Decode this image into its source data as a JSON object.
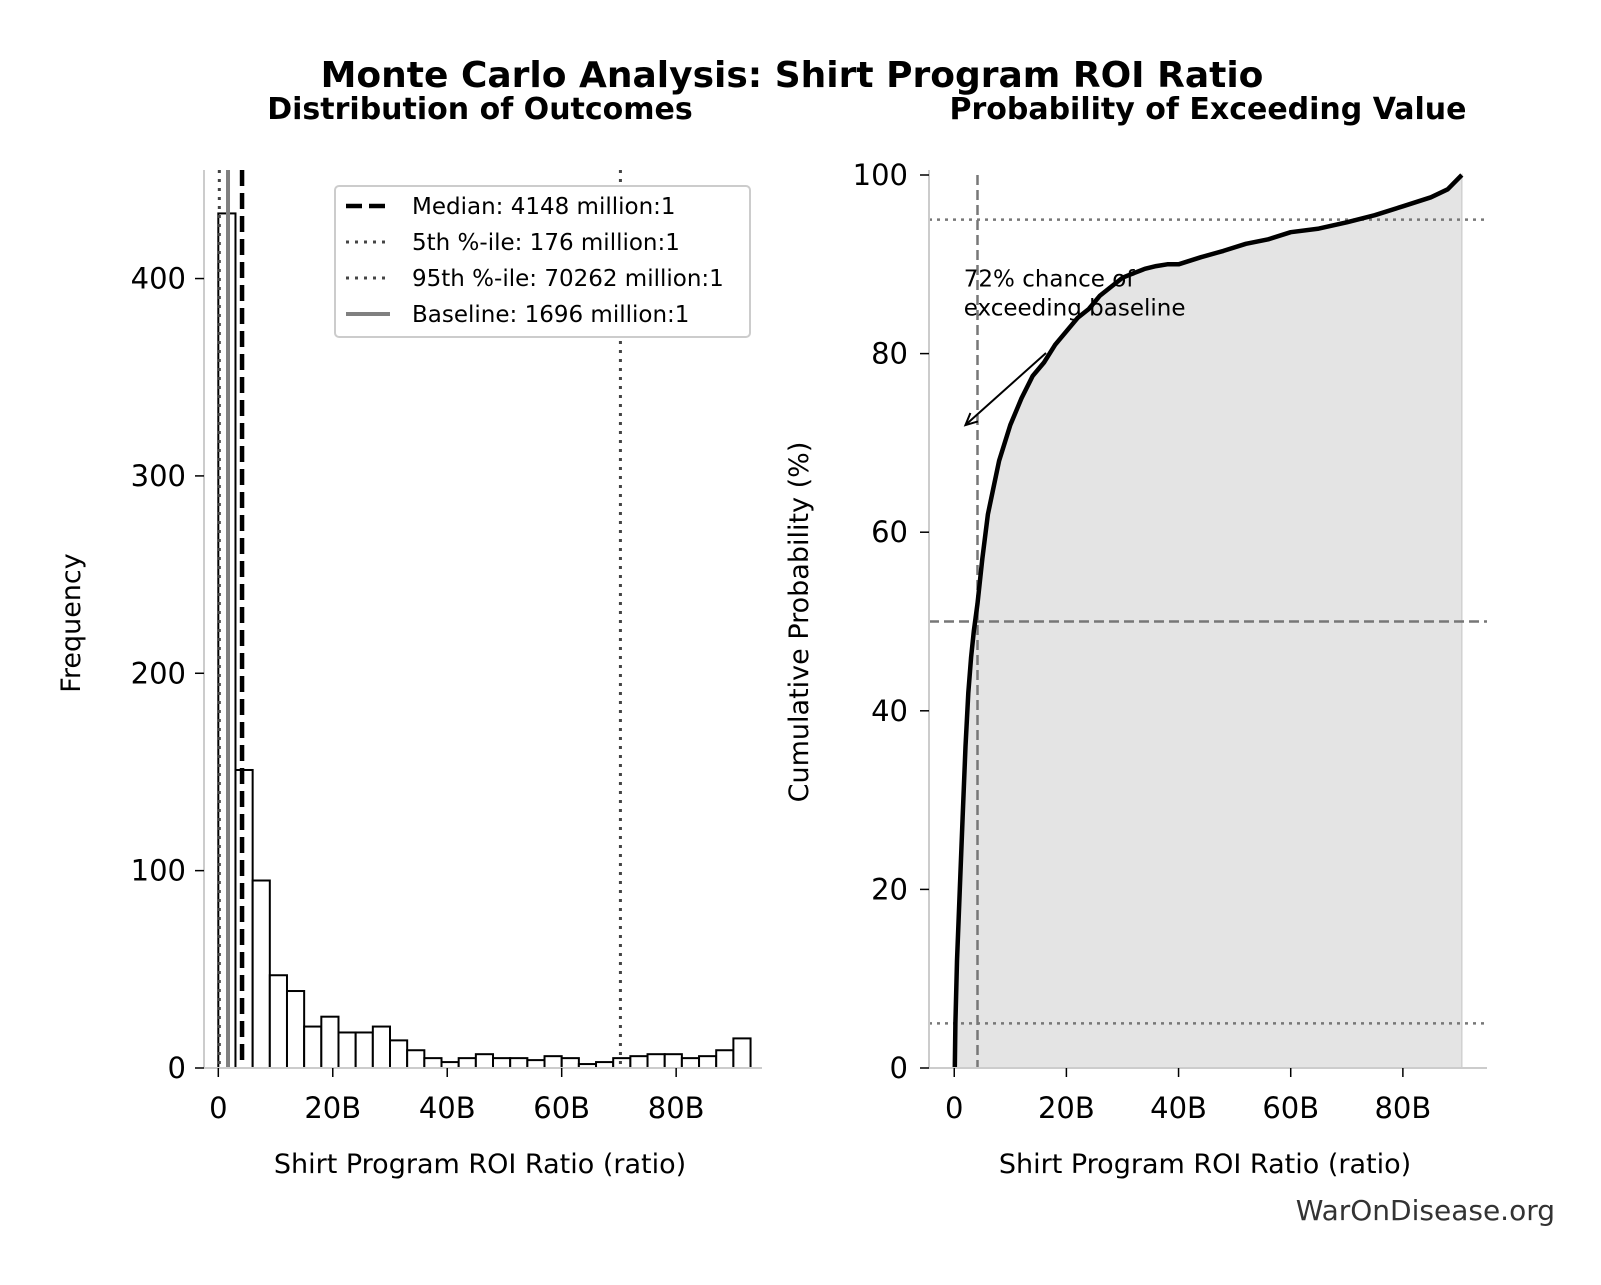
{
  "title": "Monte Carlo Analysis: Shirt Program ROI Ratio",
  "watermark": "WarOnDisease.org",
  "colors": {
    "bar_fill": "#ffffff",
    "bar_edge": "#000000",
    "median_line": "#000000",
    "percentile_line": "#444444",
    "baseline_line": "#808080",
    "cdf_line": "#000000",
    "cdf_fill": "#e4e4e4",
    "ref_line": "#777777",
    "axis": "#cccccc"
  },
  "chart_data": [
    {
      "type": "bar",
      "title": "Distribution of Outcomes",
      "xlabel": "Shirt Program ROI Ratio (ratio)",
      "ylabel": "Frequency",
      "xlim": [
        -2.5,
        95
      ],
      "ylim": [
        0,
        455
      ],
      "x_unit": "billion",
      "xticks": [
        {
          "value": 0,
          "label": "0"
        },
        {
          "value": 20,
          "label": "20B"
        },
        {
          "value": 40,
          "label": "40B"
        },
        {
          "value": 60,
          "label": "60B"
        },
        {
          "value": 80,
          "label": "80B"
        }
      ],
      "yticks": [
        {
          "value": 0,
          "label": "0"
        },
        {
          "value": 100,
          "label": "100"
        },
        {
          "value": 200,
          "label": "200"
        },
        {
          "value": 300,
          "label": "300"
        },
        {
          "value": 400,
          "label": "400"
        }
      ],
      "bin_start": 0,
      "bin_width": 3,
      "counts": [
        433,
        151,
        95,
        47,
        39,
        21,
        26,
        18,
        18,
        21,
        14,
        9,
        5,
        3,
        5,
        7,
        5,
        5,
        4,
        6,
        5,
        2,
        3,
        5,
        6,
        7,
        7,
        5,
        6,
        9,
        15
      ],
      "lines": [
        {
          "name": "Median: 4148 million:1",
          "x": 4.148,
          "style": "median"
        },
        {
          "name": "5th %-ile: 176 million:1",
          "x": 0.176,
          "style": "p5"
        },
        {
          "name": "95th %-ile: 70262 million:1",
          "x": 70.262,
          "style": "p95"
        },
        {
          "name": "Baseline: 1696 million:1",
          "x": 1.696,
          "style": "baseline"
        }
      ],
      "legend_position": "top-right",
      "grid": false
    },
    {
      "type": "area",
      "title": "Probability of Exceeding Value",
      "xlabel": "Shirt Program ROI Ratio (ratio)",
      "ylabel": "Cumulative Probability (%)",
      "xlim": [
        -4.5,
        95
      ],
      "ylim": [
        0,
        100
      ],
      "x_unit": "billion",
      "xticks": [
        {
          "value": 0,
          "label": "0"
        },
        {
          "value": 20,
          "label": "20B"
        },
        {
          "value": 40,
          "label": "40B"
        },
        {
          "value": 60,
          "label": "60B"
        },
        {
          "value": 80,
          "label": "80B"
        }
      ],
      "yticks": [
        {
          "value": 0,
          "label": "0"
        },
        {
          "value": 20,
          "label": "20"
        },
        {
          "value": 40,
          "label": "40"
        },
        {
          "value": 60,
          "label": "60"
        },
        {
          "value": 80,
          "label": "80"
        },
        {
          "value": 100,
          "label": "100"
        }
      ],
      "x": [
        0.1,
        0.2,
        0.5,
        1,
        1.5,
        2,
        2.5,
        3,
        3.5,
        4.148,
        5,
        6,
        7,
        8,
        9,
        10,
        12,
        14,
        16,
        18,
        20,
        22,
        24,
        26,
        28,
        30,
        32,
        34,
        36,
        38,
        40,
        44,
        48,
        52,
        56,
        60,
        65,
        70,
        75,
        80,
        85,
        88,
        90.5
      ],
      "y": [
        0,
        5,
        12,
        20,
        28,
        36,
        42,
        46,
        49,
        52,
        57,
        62,
        65,
        68,
        70,
        72,
        75,
        77.5,
        79,
        81,
        82.5,
        84,
        85,
        86.5,
        87.5,
        88.5,
        89,
        89.5,
        89.8,
        90,
        90,
        90.8,
        91.5,
        92.3,
        92.8,
        93.6,
        94,
        94.7,
        95.5,
        96.5,
        97.5,
        98.4,
        100
      ],
      "hlines": [
        {
          "y": 50,
          "style": "dashed"
        },
        {
          "y": 5,
          "style": "dotted"
        },
        {
          "y": 95,
          "style": "dotted"
        }
      ],
      "vline": {
        "x": 4.148,
        "style": "dashed"
      },
      "annotation": {
        "text_lines": [
          "72% chance of",
          "exceeding baseline"
        ],
        "x": 1.7,
        "y": 87.5,
        "arrow_to_x": 2.0,
        "arrow_to_y": 72
      },
      "grid": false
    }
  ]
}
